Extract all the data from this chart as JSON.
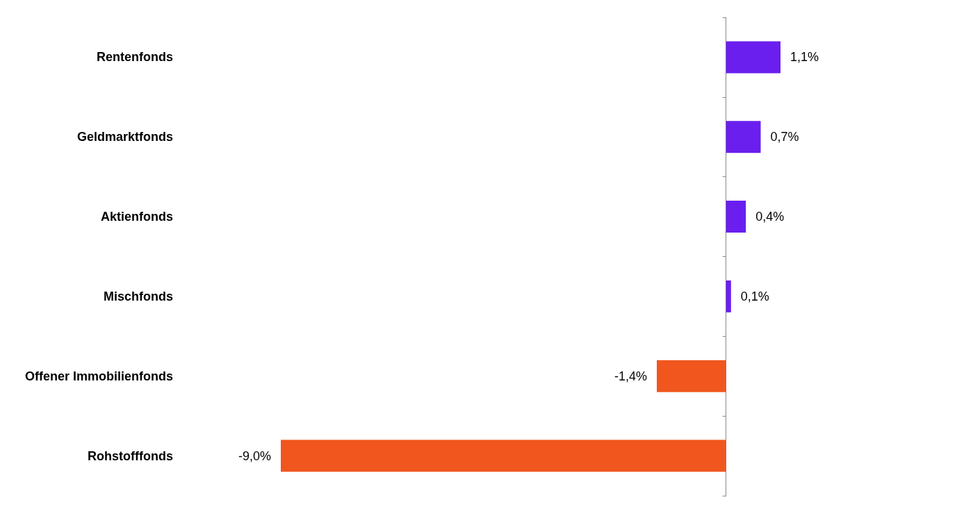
{
  "chart_data": {
    "type": "bar",
    "orientation": "horizontal",
    "categories": [
      "Rentenfonds",
      "Geldmarktfonds",
      "Aktienfonds",
      "Mischfonds",
      "Offener Immobilienfonds",
      "Rohstofffonds"
    ],
    "values": [
      1.1,
      0.7,
      0.4,
      0.1,
      -1.4,
      -9.0
    ],
    "value_labels": [
      "1,1%",
      "0,7%",
      "0,4%",
      "0,1%",
      "-1,4%",
      "-9,0%"
    ],
    "colors": [
      "#6a1fee",
      "#6a1fee",
      "#6a1fee",
      "#6a1fee",
      "#f0561e",
      "#f0561e"
    ],
    "tick_labels": "y",
    "grid": false
  }
}
